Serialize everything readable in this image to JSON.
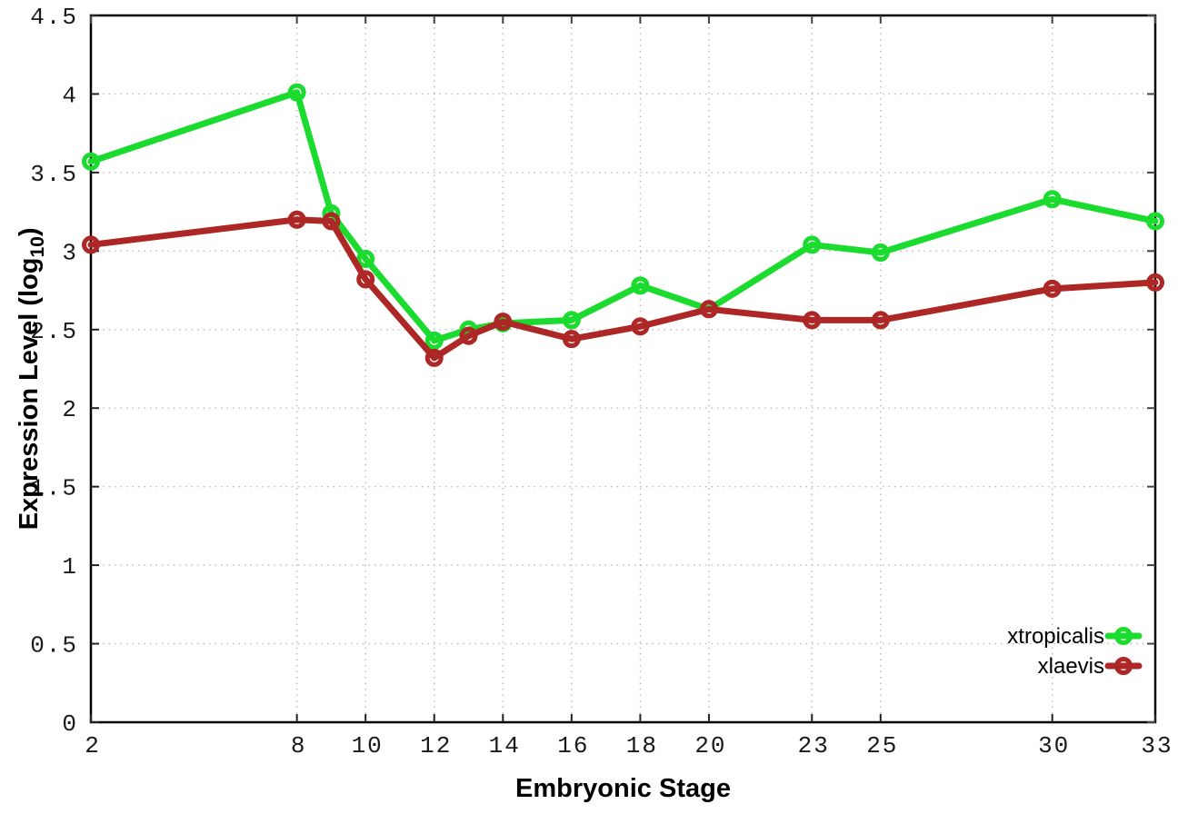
{
  "chart_data": {
    "type": "line",
    "title": "",
    "xlabel": "Embryonic Stage",
    "ylabel_main": "Expression Level (log",
    "ylabel_sub": "10",
    "ylabel_end": ")",
    "x": [
      2,
      8,
      9,
      10,
      12,
      13,
      14,
      16,
      18,
      20,
      23,
      25,
      30,
      33
    ],
    "xticks": [
      "2",
      "8",
      "10",
      "12",
      "14",
      "16",
      "18",
      "20",
      "23",
      "25",
      "30",
      "33"
    ],
    "xtick_values": [
      2,
      8,
      10,
      12,
      14,
      16,
      18,
      20,
      23,
      25,
      30,
      33
    ],
    "yticks": [
      "0",
      "0.5",
      "1",
      "1.5",
      "2",
      "2.5",
      "3",
      "3.5",
      "4",
      "4.5"
    ],
    "ytick_values": [
      0,
      0.5,
      1,
      1.5,
      2,
      2.5,
      3,
      3.5,
      4,
      4.5
    ],
    "xlim": [
      2,
      33
    ],
    "ylim": [
      0,
      4.5
    ],
    "grid": "dotted both axes",
    "legend_position": "inside bottom-right",
    "series": [
      {
        "name": "xtropicalis",
        "color": "#1cdb2f",
        "marker": "open-circle",
        "values": [
          3.57,
          4.01,
          3.24,
          2.95,
          2.43,
          2.5,
          2.54,
          2.56,
          2.78,
          2.63,
          3.04,
          2.99,
          3.33,
          3.19
        ]
      },
      {
        "name": "xlaevis",
        "color": "#ac2726",
        "marker": "open-circle",
        "values": [
          3.04,
          3.2,
          3.19,
          2.82,
          2.32,
          2.46,
          2.55,
          2.44,
          2.52,
          2.63,
          2.56,
          2.56,
          2.76,
          2.8
        ]
      }
    ],
    "colors": {
      "border": "#000000",
      "grid": "#bbbbbb",
      "tick_text": "#1a1a1a",
      "background": "#ffffff"
    }
  }
}
